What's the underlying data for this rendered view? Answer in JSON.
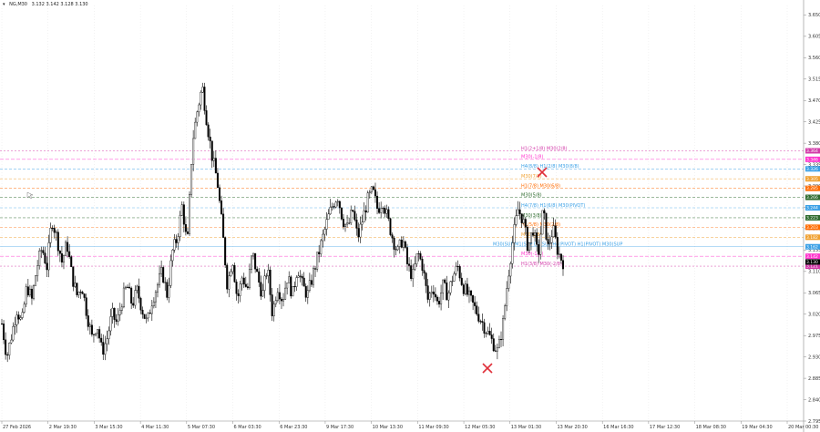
{
  "header": {
    "icon": "triangle-down-icon",
    "symbol": "NG,M30",
    "ohlc": "3.132 3.142 3.128 3.130"
  },
  "colors": {
    "candle": "#000000",
    "grid": "#e6e6e6",
    "axis": "#888888"
  },
  "chart_data": {
    "type": "candlestick",
    "ylim": [
      2.795,
      3.67
    ],
    "y_ticks": [
      "3.650",
      "3.605",
      "3.560",
      "3.515",
      "3.470",
      "3.425",
      "3.380",
      "3.335",
      "3.290",
      "3.245",
      "3.200",
      "3.155",
      "3.110",
      "3.065",
      "3.020",
      "2.975",
      "2.930",
      "2.885",
      "2.840",
      "2.795"
    ],
    "x_ticks": [
      "27 Feb 2026",
      "2 Mar 19:30",
      "3 Mar 15:30",
      "4 Mar 11:30",
      "5 Mar 07:30",
      "6 Mar 03:30",
      "6 Mar 23:30",
      "9 Mar 17:30",
      "10 Mar 13:30",
      "11 Mar 09:30",
      "12 Mar 05:30",
      "13 Mar 01:30",
      "13 Mar 20:30",
      "16 Mar 16:30",
      "17 Mar 12:30",
      "18 Mar 08:30",
      "19 Mar 04:30",
      "20 Mar 00:30"
    ],
    "price_path": [
      3.0,
      2.93,
      2.98,
      3.03,
      3.0,
      3.08,
      3.05,
      3.12,
      3.16,
      3.12,
      3.22,
      3.18,
      3.13,
      3.17,
      3.1,
      3.06,
      3.08,
      3.02,
      2.97,
      3.0,
      2.94,
      2.97,
      3.02,
      3.0,
      3.05,
      3.08,
      3.04,
      3.07,
      3.03,
      3.0,
      3.05,
      3.08,
      3.11,
      3.06,
      3.15,
      3.18,
      3.25,
      3.16,
      3.38,
      3.45,
      3.5,
      3.42,
      3.35,
      3.3,
      3.2,
      3.08,
      3.14,
      3.05,
      3.1,
      3.07,
      3.15,
      3.1,
      3.06,
      3.12,
      3.02,
      3.08,
      3.05,
      3.1,
      3.06,
      3.12,
      3.08,
      3.06,
      3.1,
      3.14,
      3.18,
      3.22,
      3.25,
      3.27,
      3.22,
      3.2,
      3.24,
      3.18,
      3.22,
      3.26,
      3.28,
      3.24,
      3.26,
      3.22,
      3.18,
      3.15,
      3.18,
      3.12,
      3.1,
      3.15,
      3.12,
      3.05,
      3.08,
      3.04,
      3.08,
      3.06,
      3.1,
      3.12,
      3.08,
      3.06,
      3.04,
      3.02,
      3.0,
      2.98,
      2.96,
      2.94,
      3.0,
      3.1,
      3.18,
      3.24,
      3.22,
      3.16,
      3.2,
      3.14,
      3.24,
      3.16,
      3.2,
      3.15,
      3.13
    ],
    "series": [
      {
        "label": "H1(2+1/8) M30(2/8)",
        "value": 3.364,
        "color": "#d23aa8",
        "dash": "2,2",
        "tag": "3.364"
      },
      {
        "label": "M30(-1/8)",
        "value": 3.346,
        "color": "#ff33cc",
        "dash": "4,2",
        "tag": "3.346"
      },
      {
        "label": "H4(8/8) H1(2/8) M30(8/8)",
        "value": 3.326,
        "color": "#3aa0e6",
        "dash": "3,2",
        "tag": "3.326"
      },
      {
        "label": "M30(7/8)",
        "value": 3.305,
        "color": "#f0a030",
        "dash": "3,2",
        "tag": "3.305"
      },
      {
        "label": "H1(7/8) M30(6/8)",
        "value": 3.285,
        "color": "#ff6a00",
        "dash": "3,2",
        "tag": "3.285"
      },
      {
        "label": "M30(5/8)",
        "value": 3.266,
        "color": "#2f6b2f",
        "dash": "3,2",
        "tag": "3.266"
      },
      {
        "label": "H4(7/8) H1(6/8) M30(PIVOT)",
        "value": 3.244,
        "color": "#3aa0e6",
        "dash": "3,2",
        "tag": "3.244"
      },
      {
        "label": "M30(3/8)",
        "value": 3.223,
        "color": "#2f6b2f",
        "dash": "3,2",
        "tag": "3.223"
      },
      {
        "label": "H1(5/8) M30(2/8)",
        "value": 3.203,
        "color": "#ff6a00",
        "dash": "3,2",
        "tag": "3.203"
      },
      {
        "label": "M30(1/8)",
        "value": 3.182,
        "color": "#f0a030",
        "dash": "3,2",
        "tag": "3.182"
      },
      {
        "label": "M30(SUP M1(SUP D1(SUP H4(PIVOT) H1(PIVOT) M30(SUP",
        "value": 3.162,
        "color": "#3aa0e6",
        "dash": "",
        "tag": "3.162"
      },
      {
        "label": "M30(-1/8)",
        "value": 3.142,
        "color": "#ff33cc",
        "dash": "4,2",
        "tag": "3.142"
      },
      {
        "label": "H1(3/8) M30(-2/8)",
        "value": 3.121,
        "color": "#d23aa8",
        "dash": "2,2",
        "tag": "3.121"
      }
    ],
    "current_price_tag": "3.130"
  }
}
